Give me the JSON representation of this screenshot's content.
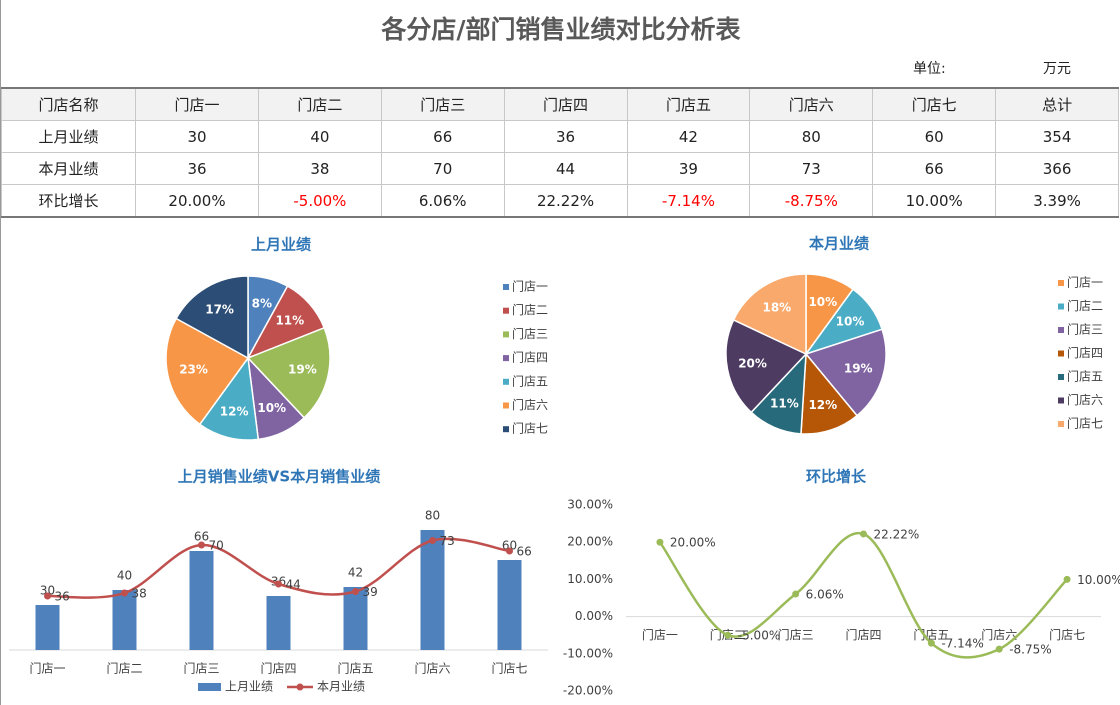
{
  "header": {
    "title": "各分店/部门销售业绩对比分析表",
    "unit_label": "单位:",
    "unit": "万元"
  },
  "table": {
    "rows": [
      [
        "门店名称",
        "门店一",
        "门店二",
        "门店三",
        "门店四",
        "门店五",
        "门店六",
        "门店七",
        "总计"
      ],
      [
        "上月业绩",
        "30",
        "40",
        "66",
        "36",
        "42",
        "80",
        "60",
        "354"
      ],
      [
        "本月业绩",
        "36",
        "38",
        "70",
        "44",
        "39",
        "73",
        "66",
        "366"
      ],
      [
        "环比增长",
        "20.00%",
        "-5.00%",
        "6.06%",
        "22.22%",
        "-7.14%",
        "-8.75%",
        "10.00%",
        "3.39%"
      ]
    ]
  },
  "chart_data": [
    {
      "type": "pie",
      "title": "上月业绩",
      "categories": [
        "门店一",
        "门店二",
        "门店三",
        "门店四",
        "门店五",
        "门店六",
        "门店七"
      ],
      "values": [
        8,
        11,
        19,
        10,
        12,
        23,
        17
      ],
      "value_labels": [
        "8%",
        "11%",
        "19%",
        "10%",
        "12%",
        "23%",
        "17%"
      ],
      "colors": [
        "#4f81bd",
        "#c0504d",
        "#9bbb59",
        "#8064a2",
        "#4bacc6",
        "#f79646",
        "#2c4d75"
      ],
      "legend": "right"
    },
    {
      "type": "pie",
      "title": "本月业绩",
      "categories": [
        "门店一",
        "门店二",
        "门店三",
        "门店四",
        "门店五",
        "门店六",
        "门店七"
      ],
      "values": [
        10,
        10,
        19,
        12,
        11,
        20,
        18
      ],
      "value_labels": [
        "10%",
        "10%",
        "19%",
        "12%",
        "11%",
        "20%",
        "18%"
      ],
      "colors": [
        "#f79646",
        "#4bacc6",
        "#8064a2",
        "#b65708",
        "#276a7c",
        "#4d3b62",
        "#f9a96b"
      ],
      "legend": "right"
    },
    {
      "type": "combo",
      "title": "上月销售业绩VS本月销售业绩",
      "categories": [
        "门店一",
        "门店二",
        "门店三",
        "门店四",
        "门店五",
        "门店六",
        "门店七"
      ],
      "series": [
        {
          "name": "上月业绩",
          "type": "bar",
          "color": "#4f81bd",
          "values": [
            30,
            40,
            66,
            36,
            42,
            80,
            60
          ]
        },
        {
          "name": "本月业绩",
          "type": "line",
          "color": "#c0504d",
          "values": [
            36,
            38,
            70,
            44,
            39,
            73,
            66
          ]
        }
      ],
      "smooth": true,
      "legend": "bottom"
    },
    {
      "type": "line",
      "title": "环比增长",
      "categories": [
        "门店一",
        "门店二",
        "门店三",
        "门店四",
        "门店五",
        "门店六",
        "门店七"
      ],
      "values": [
        20,
        -5,
        6.06,
        22.22,
        -7.14,
        -8.75,
        10
      ],
      "value_labels": [
        "20.00%",
        "-5.00%",
        "6.06%",
        "22.22%",
        "-7.14%",
        "-8.75%",
        "10.00%"
      ],
      "color": "#9bbb59",
      "smooth": true,
      "ylim": [
        -20,
        30
      ],
      "yticks": [
        {
          "value": -20,
          "label": "-20.00%"
        },
        {
          "value": -10,
          "label": "-10.00%"
        },
        {
          "value": 0,
          "label": "0.00%"
        },
        {
          "value": 10,
          "label": "10.00%"
        },
        {
          "value": 20,
          "label": "20.00%"
        },
        {
          "value": 30,
          "label": "30.00%"
        }
      ]
    }
  ]
}
